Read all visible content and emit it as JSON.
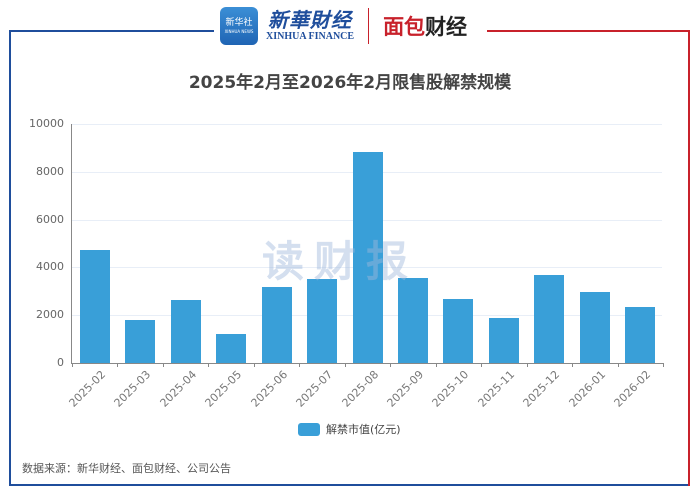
{
  "header": {
    "xinhua_badge_cn": "新华社",
    "xinhua_badge_en": "XINHUA NEWS",
    "xinhua_finance_cn": "新華財经",
    "xinhua_finance_en": "XINHUA FINANCE",
    "mianbao_red": "面包",
    "mianbao_dark": "财经"
  },
  "title": "2025年2月至2026年2月限售股解禁规模",
  "watermark": "读财报",
  "legend": {
    "label": "解禁市值(亿元)",
    "color": "#399fd8"
  },
  "source": "数据来源：新华财经、面包财经、公司公告",
  "colors": {
    "bar": "#399fd8",
    "frame_left": "#1f4e9c",
    "frame_right": "#c8212b"
  },
  "chart_data": {
    "type": "bar",
    "title": "2025年2月至2026年2月限售股解禁规模",
    "xlabel": "",
    "ylabel": "",
    "categories": [
      "2025-02",
      "2025-03",
      "2025-04",
      "2025-05",
      "2025-06",
      "2025-07",
      "2025-08",
      "2025-09",
      "2025-10",
      "2025-11",
      "2025-12",
      "2026-01",
      "2026-02"
    ],
    "series": [
      {
        "name": "解禁市值(亿元)",
        "values": [
          4730,
          1800,
          2640,
          1210,
          3180,
          3510,
          8830,
          3560,
          2680,
          1880,
          3680,
          2970,
          2340
        ]
      }
    ],
    "ylim": [
      0,
      10000
    ],
    "yticks": [
      0,
      2000,
      4000,
      6000,
      8000,
      10000
    ],
    "grid": true,
    "legend_position": "bottom"
  }
}
